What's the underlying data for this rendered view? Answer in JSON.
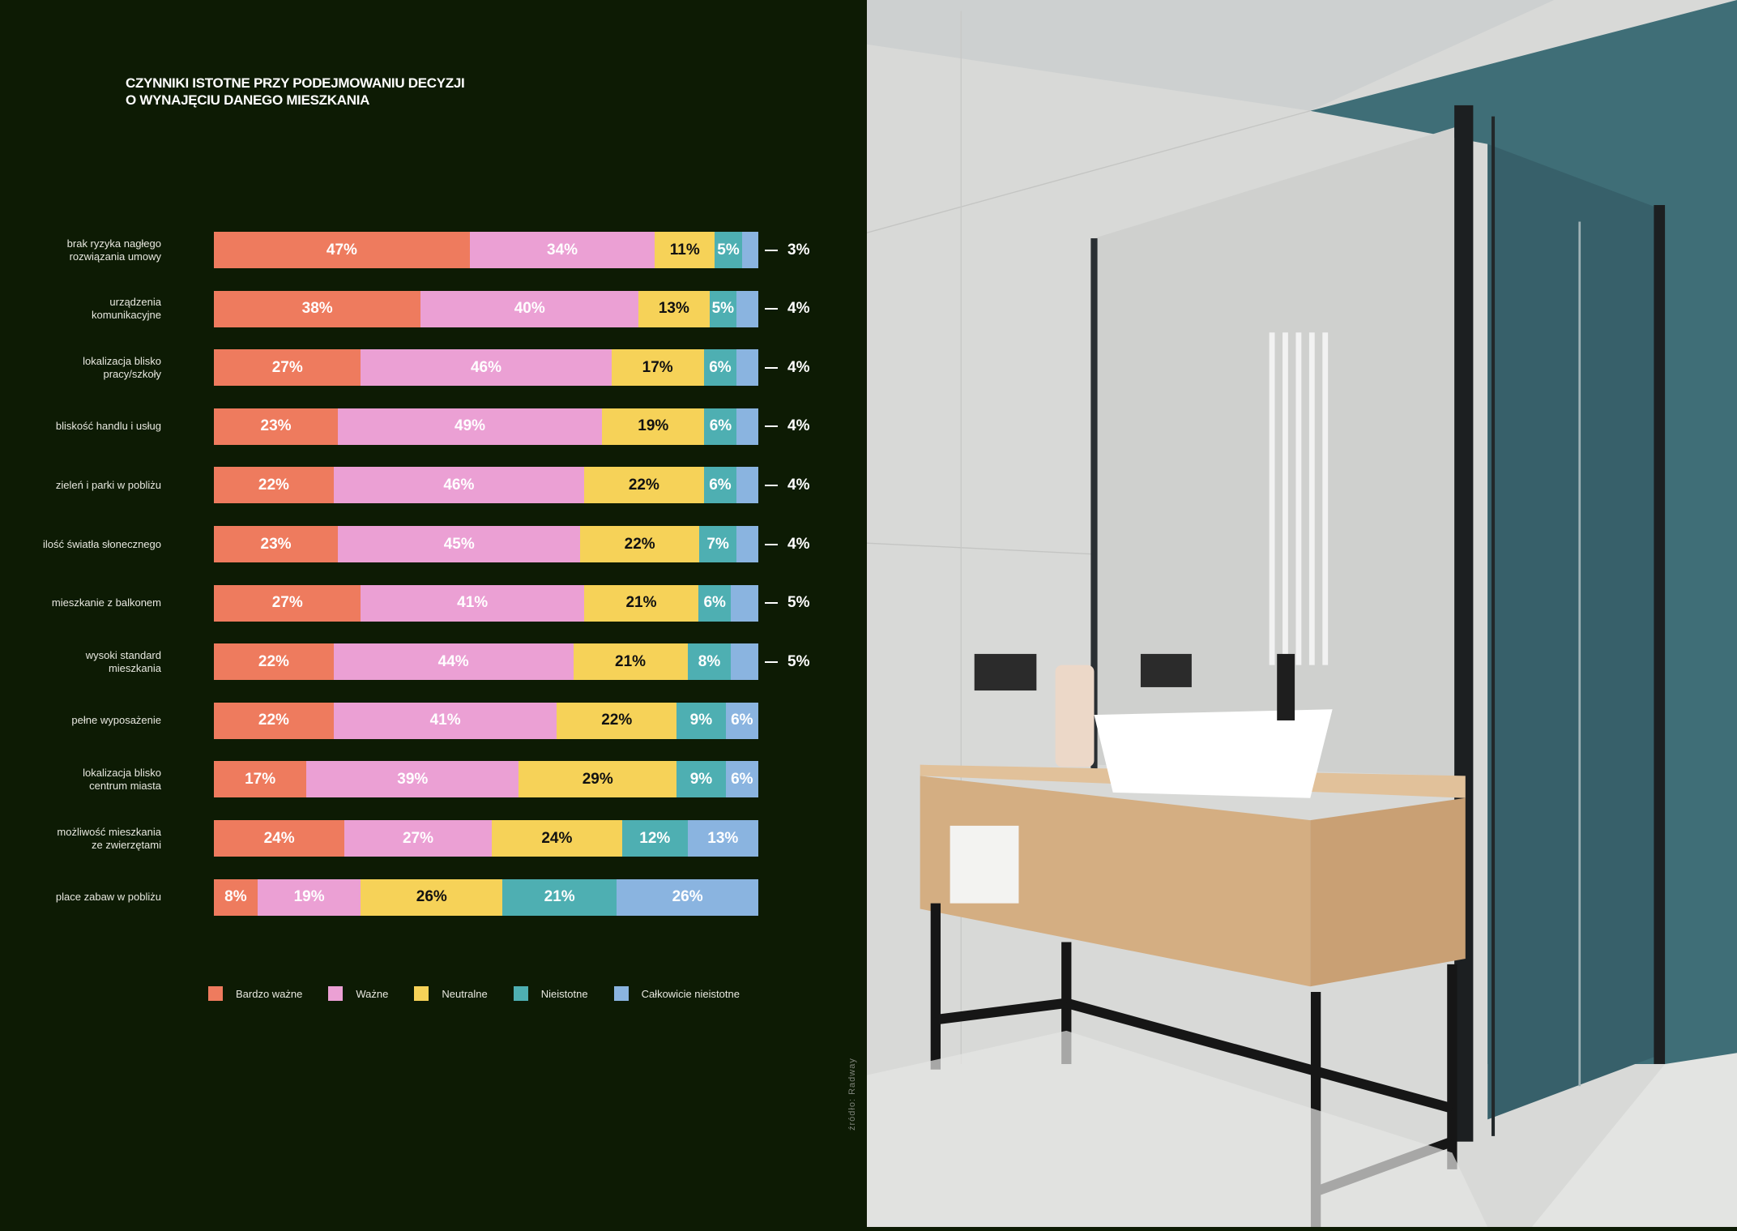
{
  "chart_data": {
    "type": "bar",
    "orientation": "horizontal-stacked-100",
    "title": "CZYNNIKI ISTOTNE PRZY PODEJMOWANIU DECYZJI O WYNAJĘCIU DANEGO MIESZKANIA",
    "title_lines": [
      "CZYNNIKI ISTOTNE PRZY PODEJMOWANIU DECYZJI",
      "O WYNAJĘCIU DANEGO MIESZKANIA"
    ],
    "categories": [
      [
        "brak ryzyka nagłego",
        "rozwiązania umowy"
      ],
      [
        "urządzenia",
        "komunikacyjne"
      ],
      [
        "lokalizacja blisko",
        "pracy/szkoły"
      ],
      [
        "bliskość handlu i usług"
      ],
      [
        "zieleń i parki w pobliżu"
      ],
      [
        "ilość światła słonecznego"
      ],
      [
        "mieszkanie z balkonem"
      ],
      [
        "wysoki standard",
        "mieszkania"
      ],
      [
        "pełne wyposażenie"
      ],
      [
        "lokalizacja blisko",
        "centrum miasta"
      ],
      [
        "możliwość mieszkania",
        "ze zwierzętami"
      ],
      [
        "place zabaw w pobliżu"
      ]
    ],
    "series": [
      {
        "name": "Bardzo ważne",
        "color": "#EE7B5E",
        "label_color": "#ffffff",
        "values": [
          47,
          38,
          27,
          23,
          22,
          23,
          27,
          22,
          22,
          17,
          24,
          8
        ]
      },
      {
        "name": "Ważne",
        "color": "#EBA0D4",
        "label_color": "#ffffff",
        "values": [
          34,
          40,
          46,
          49,
          46,
          45,
          41,
          44,
          41,
          39,
          27,
          19
        ]
      },
      {
        "name": "Neutralne",
        "color": "#F6D258",
        "label_color": "#111111",
        "values": [
          11,
          13,
          17,
          19,
          22,
          22,
          21,
          21,
          22,
          29,
          24,
          26
        ]
      },
      {
        "name": "Nieistotne",
        "color": "#4EAFB2",
        "label_color": "#ffffff",
        "values": [
          5,
          5,
          6,
          6,
          6,
          7,
          6,
          8,
          9,
          9,
          12,
          21
        ]
      },
      {
        "name": "Całkowicie nieistotne",
        "color": "#8AB4E0",
        "label_color": "#ffffff",
        "values": [
          3,
          4,
          4,
          4,
          4,
          4,
          5,
          5,
          6,
          6,
          13,
          26
        ]
      }
    ],
    "outside_label_rows": [
      0,
      1,
      2,
      3,
      4,
      5,
      6,
      7
    ],
    "value_suffix": "%",
    "xlim": [
      0,
      100
    ],
    "legend_position": "bottom",
    "grid": false
  },
  "source": "źródło: Radway",
  "colors": {
    "background": "#0D1B04",
    "text": "#FFFFFF"
  }
}
